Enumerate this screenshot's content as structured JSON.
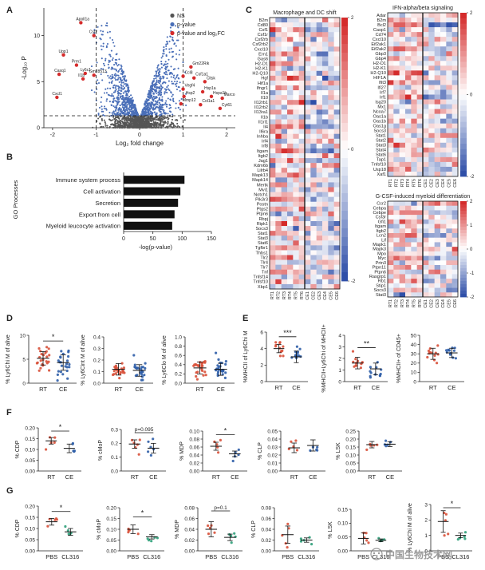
{
  "figure": {
    "panel_letters": [
      "A",
      "B",
      "C",
      "D",
      "E",
      "F",
      "G"
    ],
    "watermark": "中国生物技术网"
  },
  "chart_data": [
    {
      "panel": "A",
      "type": "scatter",
      "title": "Volcano plot",
      "xlabel": "Log₂ fold change",
      "ylabel": "-Log₁₀ P",
      "xlim": [
        -2.2,
        2.2
      ],
      "ylim": [
        0,
        13
      ],
      "xticks": [
        -2,
        -1,
        0,
        1,
        2
      ],
      "yticks": [
        0,
        5,
        10
      ],
      "thresholds": {
        "log2fc": [
          -1,
          1
        ],
        "neglog10p": 1.3
      },
      "legend": [
        {
          "label": "NS",
          "color": "#555555"
        },
        {
          "label": "p-value",
          "color": "#4a6fb8"
        },
        {
          "label": "p-value and log₂FC",
          "color": "#d52b2b"
        }
      ],
      "labeled_genes": [
        {
          "gene": "Apoll1a",
          "x": -1.35,
          "y": 11.4
        },
        {
          "gene": "Cst2",
          "x": -1.05,
          "y": 10.0
        },
        {
          "gene": "Upp1",
          "x": -1.75,
          "y": 7.9
        },
        {
          "gene": "Prm1",
          "x": -1.45,
          "y": 6.8
        },
        {
          "gene": "Casq1",
          "x": -1.85,
          "y": 5.8
        },
        {
          "gene": "Il1b",
          "x": -1.3,
          "y": 5.3
        },
        {
          "gene": "Ly6c1",
          "x": -1.25,
          "y": 5.9
        },
        {
          "gene": "Gm28513",
          "x": -1.05,
          "y": 5.7
        },
        {
          "gene": "Cxcl1",
          "x": -1.9,
          "y": 3.3
        },
        {
          "gene": "Gm22Rik",
          "x": 1.18,
          "y": 6.6
        },
        {
          "gene": "Ccl8",
          "x": 1.0,
          "y": 5.6
        },
        {
          "gene": "Csf1a1",
          "x": 1.25,
          "y": 5.4
        },
        {
          "gene": "Cltsk",
          "x": 1.5,
          "y": 5.0
        },
        {
          "gene": "Vegf4",
          "x": 1.0,
          "y": 4.2
        },
        {
          "gene": "Hsp2",
          "x": 1.02,
          "y": 3.4
        },
        {
          "gene": "Hsp1a",
          "x": 1.45,
          "y": 3.9
        },
        {
          "gene": "Hspa1b",
          "x": 1.65,
          "y": 3.4
        },
        {
          "gene": "Mmp12",
          "x": 0.95,
          "y": 2.6
        },
        {
          "gene": "Col1a1",
          "x": 1.4,
          "y": 2.5
        },
        {
          "gene": "Marco",
          "x": 1.9,
          "y": 3.2
        },
        {
          "gene": "Cyt61",
          "x": 1.85,
          "y": 2.1
        }
      ]
    },
    {
      "panel": "B",
      "type": "bar",
      "ylabel": "GO Processes",
      "xlabel": "-log(p-value)",
      "xlim": [
        0,
        150
      ],
      "xticks": [
        0,
        50,
        100,
        150
      ],
      "categories": [
        "Immune system process",
        "Cell activation",
        "Secretion",
        "Export from cell",
        "Myeloid leucocyte activation"
      ],
      "values": [
        104,
        97,
        93,
        87,
        83
      ]
    },
    {
      "panel": "C",
      "type": "heatmap",
      "columns": [
        "RT1",
        "RT2",
        "RT3",
        "RT4",
        "RT5",
        "RT6",
        "CE1",
        "CE2",
        "CE3",
        "CE4",
        "CE5",
        "CE6"
      ],
      "color_scale": {
        "min": -2,
        "max": 2,
        "low": "#2f4fa8",
        "mid": "#ffffff",
        "high": "#d42b2b"
      },
      "blocks": [
        {
          "title": "Macrophage and DC shift",
          "genes": [
            "B2m",
            "Cd80",
            "Csf1",
            "Csf1r",
            "Csf2rb",
            "Csf2rb2",
            "Cxcl10",
            "Ern1",
            "Gas6",
            "H2-D1",
            "H2-K1",
            "H2-Q10",
            "Hgf",
            "Hif1a",
            "Ifngr1",
            "Il1a",
            "Il10",
            "Il12rb1",
            "Il12rb2",
            "Il13ra1",
            "Il1b",
            "Il1rl1",
            "Il4",
            "Il6ra",
            "Inhba",
            "Irf4",
            "Irf8",
            "Itgam",
            "Itgb2",
            "Jag1",
            "Kdm6b",
            "Lilrb4",
            "Mapk13",
            "Mapk14",
            "Mertk",
            "Mvi1",
            "Notch1",
            "Pik3r3",
            "Postn",
            "Ptgs2",
            "Ptpn6",
            "Rbpj",
            "Ripk1",
            "Socs3",
            "Stat1",
            "Stat3",
            "Stat6",
            "Tgfbr1",
            "Thbs1",
            "Tlr2",
            "Tlr4",
            "Tlr7",
            "Tnf",
            "Tnfsf14",
            "Tnfsf10",
            "Xbp1"
          ],
          "colorbar_ticks": [
            2,
            0,
            -2
          ]
        },
        {
          "title": "IFN-alpha/beta signaling",
          "genes": [
            "Adar",
            "B2m",
            "Bcl2",
            "Casp1",
            "Cd74",
            "Cxcl10",
            "Eif2ak1",
            "Eif2ak2",
            "Gbp3",
            "Gbp4",
            "H2-D1",
            "H2-K1",
            "H2-Q10",
            "HIF1A",
            "Ifit3",
            "Ifi27",
            "Irf7",
            "Irf1",
            "Isg20",
            "Mx1",
            "Ncoa7",
            "Oas1a",
            "Oas1b",
            "Oas1g",
            "Socs3",
            "Stat1",
            "Stat2",
            "Stat3",
            "Stat4",
            "Stat6",
            "Tap1",
            "Tnfsf10",
            "Usp18",
            "Xaf1"
          ],
          "colorbar_ticks": [
            2,
            0,
            -2
          ]
        },
        {
          "title": "G-CSF-induced myeloid differentiation",
          "genes": [
            "Ccr2",
            "Cebpa",
            "Cebpe",
            "Csf3r",
            "Gfi1",
            "Itgam",
            "Itgb2",
            "Lcn2",
            "Lif",
            "Mapk1",
            "Mapk3",
            "Mpo",
            "Myc",
            "Prtn3",
            "Ptpn11",
            "Ptpn6",
            "Rasgrp1",
            "Rb1",
            "Stip1",
            "Socs3",
            "Stat3"
          ],
          "colorbar_ticks": [
            2,
            1,
            0,
            -1,
            -2
          ]
        }
      ]
    },
    {
      "panel": "D",
      "type": "scatter",
      "groups": [
        "RT",
        "CE"
      ],
      "group_colors": [
        "#d8513a",
        "#2f5ea8"
      ],
      "subplots": [
        {
          "ylabel": "% Ly6Chi M of alive",
          "ylim": [
            0,
            10
          ],
          "yticks": [
            0,
            5,
            10
          ],
          "means": [
            5.2,
            4.3
          ],
          "sd": [
            1.4,
            1.6
          ],
          "n": 24,
          "significance": "*"
        },
        {
          "ylabel": "% Ly6Cint M of alive",
          "ylim": [
            0,
            0.4
          ],
          "yticks": [
            0.0,
            0.1,
            0.2,
            0.3,
            0.4
          ],
          "means": [
            0.12,
            0.11
          ],
          "sd": [
            0.05,
            0.05
          ],
          "n": 24,
          "significance": ""
        },
        {
          "ylabel": "% Ly6Clo M of alive",
          "ylim": [
            0,
            1.0
          ],
          "yticks": [
            0.0,
            0.2,
            0.4,
            0.6,
            0.8,
            1.0
          ],
          "means": [
            0.33,
            0.3
          ],
          "sd": [
            0.13,
            0.13
          ],
          "n": 24,
          "significance": ""
        }
      ]
    },
    {
      "panel": "E",
      "type": "scatter",
      "groups": [
        "RT",
        "CE"
      ],
      "group_colors": [
        "#d8513a",
        "#2f5ea8"
      ],
      "subplots": [
        {
          "ylabel": "%MHCII of Ly6Chi M",
          "ylim": [
            0,
            6
          ],
          "yticks": [
            0,
            2,
            4,
            6
          ],
          "means": [
            4.0,
            3.0
          ],
          "sd": [
            0.5,
            0.7
          ],
          "n": 12,
          "significance": "***"
        },
        {
          "ylabel": "%MHCII+Ly6Chi of MHCII+",
          "ylim": [
            0,
            4
          ],
          "yticks": [
            0,
            1,
            2,
            3,
            4
          ],
          "means": [
            1.6,
            1.1
          ],
          "sd": [
            0.5,
            0.5
          ],
          "n": 12,
          "significance": "**"
        },
        {
          "ylabel": "%MHCII+ of CD45+",
          "ylim": [
            0,
            50
          ],
          "yticks": [
            0,
            10,
            20,
            30,
            40,
            50
          ],
          "means": [
            30,
            31
          ],
          "sd": [
            6,
            5
          ],
          "n": 12,
          "significance": ""
        }
      ]
    },
    {
      "panel": "F",
      "type": "scatter",
      "groups": [
        "RT",
        "CE"
      ],
      "group_colors": [
        "#d8513a",
        "#2f5ea8"
      ],
      "subplots": [
        {
          "ylabel": "% CDP",
          "ylim": [
            0,
            0.2
          ],
          "yticks": [
            0.0,
            0.05,
            0.1,
            0.15,
            0.2
          ],
          "means": [
            0.14,
            0.105
          ],
          "sd": [
            0.015,
            0.02
          ],
          "n": 5,
          "significance": "*"
        },
        {
          "ylabel": "% cMoP",
          "ylim": [
            0,
            0.3
          ],
          "yticks": [
            0.0,
            0.1,
            0.2,
            0.3
          ],
          "means": [
            0.195,
            0.165
          ],
          "sd": [
            0.03,
            0.035
          ],
          "n": 6,
          "significance": "p=0.095"
        },
        {
          "ylabel": "% MDP",
          "ylim": [
            0,
            0.1
          ],
          "yticks": [
            0.0,
            0.02,
            0.04,
            0.06,
            0.08,
            0.1
          ],
          "means": [
            0.062,
            0.043
          ],
          "sd": [
            0.01,
            0.007
          ],
          "n": 5,
          "significance": "*"
        },
        {
          "ylabel": "% CLP",
          "ylim": [
            0,
            0.05
          ],
          "yticks": [
            0.0,
            0.01,
            0.02,
            0.03,
            0.04,
            0.05
          ],
          "means": [
            0.029,
            0.032
          ],
          "sd": [
            0.006,
            0.007
          ],
          "n": 5,
          "significance": ""
        },
        {
          "ylabel": "% LSK",
          "ylim": [
            0,
            0.25
          ],
          "yticks": [
            0.0,
            0.05,
            0.1,
            0.15,
            0.2,
            0.25
          ],
          "means": [
            0.165,
            0.168
          ],
          "sd": [
            0.02,
            0.015
          ],
          "n": 5,
          "significance": ""
        }
      ]
    },
    {
      "panel": "G",
      "type": "scatter",
      "groups": [
        "PBS",
        "CL316"
      ],
      "group_colors": [
        "#d8513a",
        "#2fa07a"
      ],
      "subplots": [
        {
          "ylabel": "% CDP",
          "ylim": [
            0,
            0.2
          ],
          "yticks": [
            0.0,
            0.05,
            0.1,
            0.15,
            0.2
          ],
          "means": [
            0.13,
            0.085
          ],
          "sd": [
            0.015,
            0.015
          ],
          "n": 5,
          "significance": "*"
        },
        {
          "ylabel": "% cMoP",
          "ylim": [
            0,
            0.2
          ],
          "yticks": [
            0.0,
            0.05,
            0.1,
            0.15,
            0.2
          ],
          "means": [
            0.1,
            0.065
          ],
          "sd": [
            0.02,
            0.01
          ],
          "n": 5,
          "significance": "*"
        },
        {
          "ylabel": "% MDP",
          "ylim": [
            0,
            0.08
          ],
          "yticks": [
            0.0,
            0.02,
            0.04,
            0.06,
            0.08
          ],
          "means": [
            0.04,
            0.025
          ],
          "sd": [
            0.014,
            0.006
          ],
          "n": 5,
          "significance": "p=0.1"
        },
        {
          "ylabel": "% CLP",
          "ylim": [
            0,
            0.08
          ],
          "yticks": [
            0.0,
            0.02,
            0.04,
            0.06,
            0.08
          ],
          "means": [
            0.03,
            0.02
          ],
          "sd": [
            0.016,
            0.004
          ],
          "n": 5,
          "significance": ""
        },
        {
          "ylabel": "% LSK",
          "ylim": [
            0,
            0.15
          ],
          "yticks": [
            0.0,
            0.05,
            0.1,
            0.15
          ],
          "means": [
            0.045,
            0.038
          ],
          "sd": [
            0.02,
            0.005
          ],
          "n": 5,
          "significance": ""
        },
        {
          "ylabel": "% Ly6Chi M of alive",
          "ylim": [
            0,
            3
          ],
          "yticks": [
            0,
            1,
            2,
            3
          ],
          "means": [
            1.9,
            1.0
          ],
          "sd": [
            0.7,
            0.15
          ],
          "n": 5,
          "significance": "*"
        }
      ]
    }
  ]
}
